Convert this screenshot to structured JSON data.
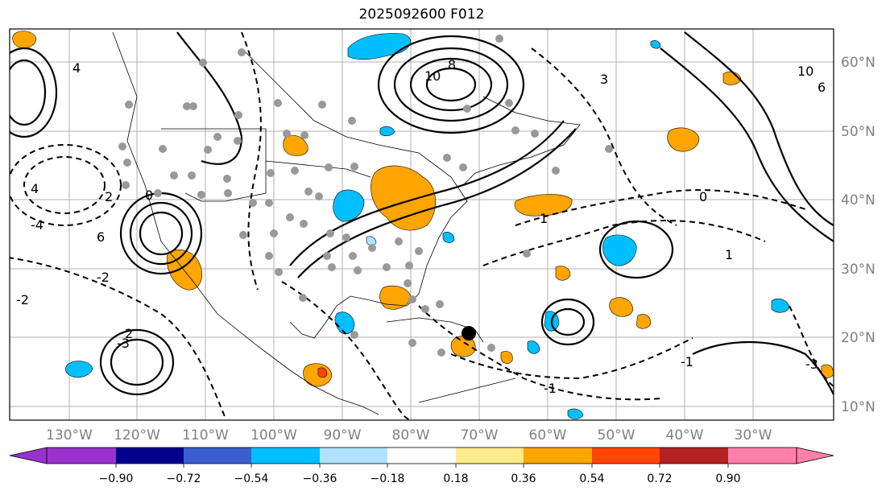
{
  "title": "2025092600 F012",
  "longitude_labels": [
    "130°W",
    "120°W",
    "110°W",
    "100°W",
    "90°W",
    "80°W",
    "70°W",
    "60°W",
    "50°W",
    "40°W",
    "30°W"
  ],
  "latitude_labels": [
    "60°N",
    "50°N",
    "40°N",
    "30°N",
    "20°N",
    "10°N"
  ],
  "contour_labels": [
    "10",
    "8",
    "6",
    "4",
    "3",
    "2",
    "1",
    "0",
    "-1",
    "-2",
    "-3",
    "-4",
    "10",
    "6",
    "4",
    "2",
    "1",
    "0",
    "-1",
    "-2",
    "-3"
  ],
  "colorbar": {
    "ticks": [
      "−0.90",
      "−0.72",
      "−0.54",
      "−0.36",
      "−0.18",
      "0.18",
      "0.36",
      "0.54",
      "0.72",
      "0.90"
    ],
    "colors": [
      "#9932cc",
      "#00008b",
      "#3a5fcd",
      "#00bfff",
      "#b0e2ff",
      "#ffffff",
      "#ffeb8a",
      "#ffa500",
      "#ff4500",
      "#b22222",
      "#ff80aa"
    ]
  },
  "colors": {
    "grid": "#b0b0b0",
    "label_gray": "#808080"
  }
}
